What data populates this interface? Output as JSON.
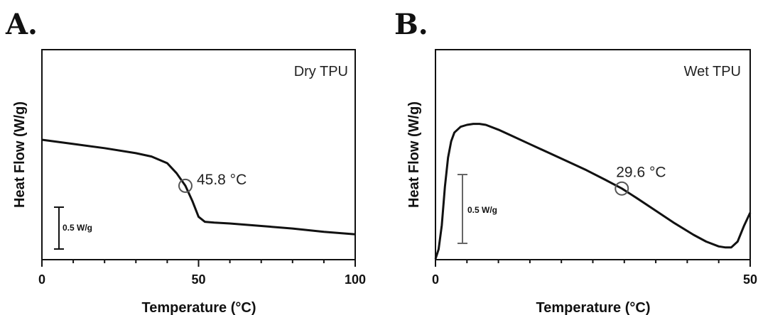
{
  "chart_data": [
    {
      "type": "line",
      "panel": "A.",
      "label": "Dry TPU",
      "xlabel": "Temperature (°C)",
      "ylabel": "Heat Flow (W/g)",
      "xlim": [
        0,
        100
      ],
      "xticks": [
        "0",
        "50",
        "100"
      ],
      "scale_bar": "0.5 W/g",
      "scale_bar_value": 0.5,
      "annotation": {
        "text": "45.8 °C",
        "x": 45.8
      },
      "x": [
        0,
        10,
        20,
        30,
        35,
        40,
        43,
        45.8,
        48,
        50,
        52,
        55,
        60,
        70,
        80,
        90,
        100
      ],
      "y": [
        0.0,
        -0.05,
        -0.1,
        -0.16,
        -0.2,
        -0.28,
        -0.4,
        -0.55,
        -0.73,
        -0.92,
        -0.98,
        -0.99,
        -1.0,
        -1.03,
        -1.06,
        -1.1,
        -1.13
      ]
    },
    {
      "type": "line",
      "panel": "B.",
      "label": "Wet TPU",
      "xlabel": "Temperature (°C)",
      "ylabel": "Heat Flow (W/g)",
      "xlim": [
        0,
        50
      ],
      "xticks": [
        "0",
        "50"
      ],
      "scale_bar": "0.5 W/g",
      "scale_bar_value": 0.5,
      "annotation": {
        "text": "29.6 °C",
        "x": 29.6
      },
      "x": [
        0,
        0.5,
        1,
        1.5,
        2,
        2.5,
        3,
        4,
        5,
        6,
        7,
        8,
        10,
        12,
        15,
        18,
        21,
        24,
        27,
        29.6,
        32,
        35,
        38,
        41,
        43,
        45,
        46,
        47,
        48,
        49,
        50
      ],
      "y": [
        0.0,
        0.1,
        0.35,
        0.75,
        1.05,
        1.22,
        1.31,
        1.37,
        1.39,
        1.4,
        1.4,
        1.39,
        1.34,
        1.28,
        1.19,
        1.1,
        1.01,
        0.92,
        0.82,
        0.73,
        0.63,
        0.5,
        0.37,
        0.25,
        0.18,
        0.13,
        0.12,
        0.12,
        0.18,
        0.34,
        0.48
      ]
    }
  ]
}
